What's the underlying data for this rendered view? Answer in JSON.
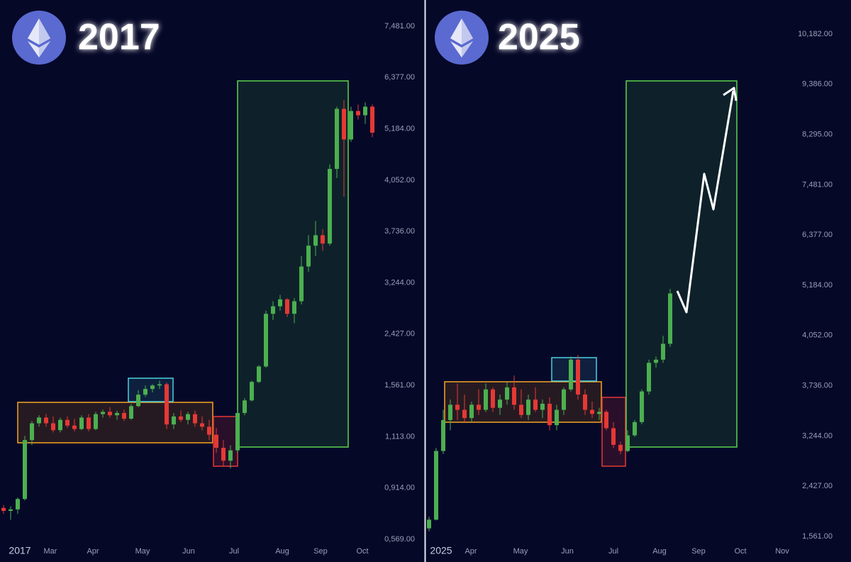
{
  "chart_data": [
    {
      "type": "candlestick",
      "title": "2017",
      "x": [
        1,
        3,
        5,
        7,
        9,
        11,
        13,
        15,
        17,
        19,
        21,
        23,
        25,
        27,
        29,
        31,
        33,
        35,
        37,
        39,
        41,
        43,
        45,
        47,
        49,
        51,
        53,
        55,
        57,
        59,
        61,
        63,
        65,
        67,
        69,
        71,
        73,
        75,
        77,
        79,
        81,
        83,
        85,
        87,
        89,
        91,
        93,
        95,
        97,
        99,
        101,
        103,
        105
      ],
      "open": [
        780,
        760,
        770,
        840,
        1100,
        1230,
        1280,
        1230,
        1170,
        1260,
        1210,
        1180,
        1280,
        1180,
        1310,
        1330,
        1300,
        1320,
        1270,
        1380,
        1480,
        1530,
        1560,
        1580,
        1220,
        1290,
        1260,
        1310,
        1230,
        1200,
        1130,
        1070,
        1020,
        1060,
        1320,
        1430,
        1620,
        1880,
        2750,
        2870,
        2980,
        2750,
        2950,
        3400,
        3600,
        3700,
        3620,
        4300,
        5650,
        4950,
        5600,
        5500,
        5700
      ],
      "high": [
        800,
        790,
        850,
        1120,
        1250,
        1300,
        1310,
        1290,
        1280,
        1290,
        1270,
        1300,
        1310,
        1330,
        1350,
        1370,
        1340,
        1350,
        1400,
        1520,
        1560,
        1580,
        1640,
        1610,
        1320,
        1340,
        1330,
        1340,
        1290,
        1260,
        1190,
        1100,
        1080,
        1340,
        1450,
        1640,
        1900,
        2800,
        2950,
        3050,
        3000,
        3000,
        3500,
        3700,
        3800,
        3750,
        4400,
        5700,
        5850,
        5700,
        5750,
        5800,
        5750
      ],
      "low": [
        740,
        700,
        740,
        830,
        1080,
        1200,
        1200,
        1150,
        1150,
        1190,
        1160,
        1170,
        1160,
        1170,
        1280,
        1280,
        1260,
        1250,
        1260,
        1370,
        1460,
        1500,
        1530,
        1180,
        1180,
        1240,
        1220,
        1200,
        1170,
        1100,
        1050,
        1000,
        990,
        1050,
        1300,
        1420,
        1600,
        1860,
        2650,
        2800,
        2700,
        2600,
        2900,
        3350,
        3500,
        3550,
        3600,
        4100,
        3950,
        4900,
        5400,
        5300,
        5000
      ],
      "close": [
        760,
        770,
        840,
        1100,
        1230,
        1280,
        1230,
        1170,
        1260,
        1210,
        1180,
        1280,
        1180,
        1310,
        1330,
        1300,
        1320,
        1270,
        1380,
        1480,
        1530,
        1560,
        1580,
        1220,
        1290,
        1260,
        1310,
        1230,
        1200,
        1130,
        1070,
        1020,
        1060,
        1320,
        1430,
        1620,
        1880,
        2750,
        2870,
        2980,
        2750,
        2950,
        3400,
        3600,
        3700,
        3620,
        4300,
        5650,
        4950,
        5600,
        5500,
        5700,
        5100
      ],
      "xlim": [
        0,
        106
      ],
      "xticks": [
        {
          "value": 5.6,
          "label": "2017"
        },
        {
          "value": 14.2,
          "label": "Mar"
        },
        {
          "value": 26.2,
          "label": "Apr"
        },
        {
          "value": 40.2,
          "label": "May"
        },
        {
          "value": 53.2,
          "label": "Jun"
        },
        {
          "value": 66,
          "label": "Jul"
        },
        {
          "value": 79.6,
          "label": "Aug"
        },
        {
          "value": 90.4,
          "label": "Sep"
        },
        {
          "value": 102.2,
          "label": "Oct"
        }
      ],
      "ylim": [
        569,
        7481
      ],
      "yticks": [
        {
          "value": 569,
          "label": "0,569.00"
        },
        {
          "value": 914,
          "label": "0,914.00"
        },
        {
          "value": 1113,
          "label": "1,113.00"
        },
        {
          "value": 1561,
          "label": "1,561.00"
        },
        {
          "value": 2427,
          "label": "2,427.00"
        },
        {
          "value": 3244,
          "label": "3,244.00"
        },
        {
          "value": 3736,
          "label": "3,736.00"
        },
        {
          "value": 4052,
          "label": "4,052.00"
        },
        {
          "value": 5184,
          "label": "5,184.00"
        },
        {
          "value": 6377,
          "label": "6,377.00"
        },
        {
          "value": 7481,
          "label": "7,481.00"
        }
      ],
      "up_color": "#4caf50",
      "down_color": "#e53935"
    },
    {
      "type": "candlestick",
      "title": "2025",
      "x": [
        1,
        3,
        5,
        7,
        9,
        11,
        13,
        15,
        17,
        19,
        21,
        23,
        25,
        27,
        29,
        31,
        33,
        35,
        37,
        39,
        41,
        43,
        45,
        47,
        49,
        51,
        53,
        55,
        57,
        59,
        61,
        63,
        65,
        67,
        69
      ],
      "open": [
        1700,
        1850,
        3000,
        3400,
        3550,
        3500,
        3420,
        3550,
        3500,
        3700,
        3520,
        3600,
        3720,
        3550,
        3450,
        3600,
        3500,
        3560,
        3350,
        3500,
        3700,
        3900,
        3650,
        3500,
        3460,
        3480,
        3320,
        3100,
        3000,
        3250,
        3380,
        3680,
        3880,
        3900,
        4000
      ],
      "high": [
        1900,
        3050,
        3500,
        3600,
        3750,
        3650,
        3580,
        3700,
        3750,
        3720,
        3650,
        3760,
        3800,
        3700,
        3650,
        3720,
        3600,
        3620,
        3550,
        3720,
        3920,
        3930,
        3700,
        3580,
        3520,
        3500,
        3380,
        3150,
        3300,
        3400,
        3700,
        3900,
        3920,
        4050,
        5100
      ],
      "low": [
        1650,
        1840,
        2950,
        3300,
        3400,
        3380,
        3380,
        3450,
        3480,
        3480,
        3450,
        3550,
        3500,
        3420,
        3400,
        3480,
        3420,
        3300,
        3300,
        3450,
        3680,
        3600,
        3450,
        3420,
        3400,
        3300,
        3050,
        2950,
        2980,
        3230,
        3360,
        3650,
        3850,
        3880,
        3980
      ],
      "close": [
        1850,
        3000,
        3400,
        3550,
        3500,
        3420,
        3550,
        3500,
        3700,
        3520,
        3600,
        3720,
        3550,
        3450,
        3600,
        3500,
        3560,
        3350,
        3500,
        3700,
        3900,
        3650,
        3500,
        3460,
        3480,
        3320,
        3100,
        3000,
        3250,
        3380,
        3680,
        3880,
        3900,
        4000,
        5000
      ],
      "xlim": [
        0,
        106
      ],
      "xticks": [
        {
          "value": 4.4,
          "label": "2025"
        },
        {
          "value": 12.8,
          "label": "Apr"
        },
        {
          "value": 26.8,
          "label": "May"
        },
        {
          "value": 40,
          "label": "Jun"
        },
        {
          "value": 53,
          "label": "Jul"
        },
        {
          "value": 66,
          "label": "Aug"
        },
        {
          "value": 77,
          "label": "Sep"
        },
        {
          "value": 88.8,
          "label": "Oct"
        },
        {
          "value": 100.6,
          "label": "Nov"
        }
      ],
      "ylim": [
        1561,
        10182
      ],
      "yticks": [
        {
          "value": 1561,
          "label": "1,561.00"
        },
        {
          "value": 2427,
          "label": "2,427.00"
        },
        {
          "value": 3244,
          "label": "3,244.00"
        },
        {
          "value": 3736,
          "label": "3,736.00"
        },
        {
          "value": 4052,
          "label": "4,052.00"
        },
        {
          "value": 5184,
          "label": "5,184.00"
        },
        {
          "value": 6377,
          "label": "6,377.00"
        },
        {
          "value": 7481,
          "label": "7,481.00"
        },
        {
          "value": 8295,
          "label": "8,295.00"
        },
        {
          "value": 9386,
          "label": "9,386.00"
        },
        {
          "value": 10182,
          "label": "10,182.00"
        }
      ],
      "up_color": "#4caf50",
      "down_color": "#e53935"
    }
  ]
}
